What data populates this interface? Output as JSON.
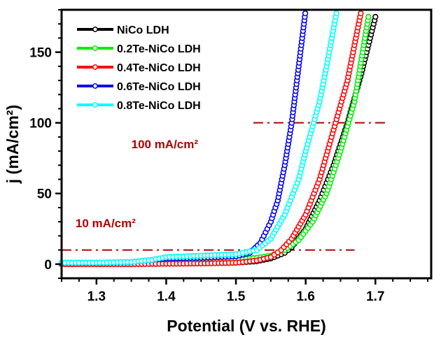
{
  "chart_data": {
    "type": "scatter",
    "title": "",
    "xlabel": "Potential (V vs. RHE)",
    "ylabel": "j (mA/cm²)",
    "xlim": [
      1.25,
      1.78
    ],
    "ylim": [
      -10,
      180
    ],
    "xticks": [
      1.3,
      1.4,
      1.5,
      1.6,
      1.7
    ],
    "xtick_labels": [
      "1.3",
      "1.4",
      "1.5",
      "1.6",
      "1.7"
    ],
    "yticks": [
      0,
      50,
      100,
      150
    ],
    "ytick_labels": [
      "0",
      "50",
      "100",
      "150"
    ],
    "grid": false,
    "legend_position": "top-left",
    "series": [
      {
        "name": "NiCo LDH",
        "color": "#000000",
        "x": [
          1.25,
          1.3,
          1.35,
          1.4,
          1.45,
          1.5,
          1.53,
          1.55,
          1.57,
          1.58,
          1.6,
          1.62,
          1.64,
          1.66,
          1.68,
          1.7
        ],
        "y": [
          0,
          0,
          0,
          0.3,
          0.5,
          1,
          2,
          4,
          8,
          12,
          25,
          45,
          70,
          100,
          135,
          175
        ]
      },
      {
        "name": "0.2Te-NiCo LDH",
        "color": "#00ee00",
        "x": [
          1.25,
          1.3,
          1.35,
          1.4,
          1.45,
          1.5,
          1.53,
          1.55,
          1.57,
          1.59,
          1.61,
          1.63,
          1.65,
          1.67,
          1.69
        ],
        "y": [
          0.5,
          0.8,
          1,
          1.5,
          2,
          3,
          4.5,
          6,
          10,
          17,
          30,
          50,
          80,
          115,
          175
        ]
      },
      {
        "name": "0.4Te-NiCo LDH",
        "color": "#ff0000",
        "x": [
          1.25,
          1.3,
          1.35,
          1.4,
          1.45,
          1.5,
          1.53,
          1.55,
          1.565,
          1.58,
          1.6,
          1.62,
          1.64,
          1.66,
          1.68
        ],
        "y": [
          0,
          0,
          0,
          0.3,
          0.5,
          1,
          2.5,
          5,
          10,
          18,
          35,
          60,
          95,
          130,
          180
        ]
      },
      {
        "name": "0.6Te-NiCo LDH",
        "color": "#0000ee",
        "x": [
          1.25,
          1.3,
          1.35,
          1.38,
          1.4,
          1.45,
          1.5,
          1.52,
          1.535,
          1.55,
          1.56,
          1.57,
          1.58,
          1.59,
          1.6
        ],
        "y": [
          1,
          1,
          1.5,
          3,
          4,
          4.5,
          5.5,
          8,
          15,
          30,
          45,
          70,
          100,
          140,
          180
        ]
      },
      {
        "name": "0.8Te-NiCo LDH",
        "color": "#00ffff",
        "x": [
          1.25,
          1.3,
          1.35,
          1.38,
          1.4,
          1.45,
          1.5,
          1.53,
          1.55,
          1.57,
          1.59,
          1.6,
          1.62,
          1.63,
          1.645
        ],
        "y": [
          1,
          1,
          1.5,
          3,
          5,
          6,
          7,
          10,
          18,
          35,
          60,
          80,
          115,
          140,
          180
        ]
      }
    ],
    "reference_lines": [
      {
        "y": 10,
        "x_range": [
          1.25,
          1.67
        ],
        "color": "#b00000",
        "style": "dash-dot",
        "label": "10 mA/cm²",
        "label_anchor": [
          1.27,
          26
        ]
      },
      {
        "y": 100,
        "x_range": [
          1.525,
          1.715
        ],
        "color": "#b00000",
        "style": "dash-dot",
        "label": "100 mA/cm²",
        "label_anchor": [
          1.35,
          82
        ]
      }
    ]
  }
}
